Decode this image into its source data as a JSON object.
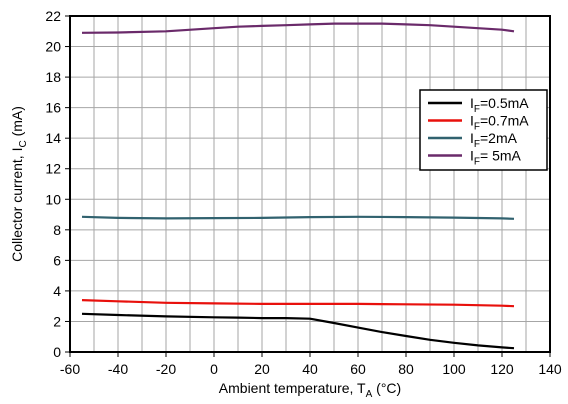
{
  "chart_data": {
    "type": "line",
    "xlabel": "Ambient temperature, T",
    "xlabel_sub": "A",
    "xlabel_unit": " (°C)",
    "ylabel": "Collector current, I",
    "ylabel_sub": "C",
    "ylabel_unit": " (mA)",
    "xlim": [
      -60,
      140
    ],
    "ylim": [
      0,
      22
    ],
    "xticks": [
      -60,
      -40,
      -20,
      0,
      20,
      40,
      60,
      80,
      100,
      120,
      140
    ],
    "yticks": [
      0,
      2,
      4,
      6,
      8,
      10,
      12,
      14,
      16,
      18,
      20,
      22
    ],
    "xminor": [
      -50,
      -30,
      -10,
      10,
      30,
      50,
      70,
      90,
      110,
      130
    ],
    "grid": true,
    "legend_position": "right",
    "series": [
      {
        "name_main": "I",
        "name_sub": "F",
        "name_rest": "=0.5mA",
        "color": "#000000",
        "x": [
          -55,
          -40,
          -20,
          0,
          10,
          20,
          30,
          40,
          50,
          60,
          70,
          80,
          90,
          100,
          110,
          120,
          125
        ],
        "y": [
          2.5,
          2.42,
          2.33,
          2.27,
          2.25,
          2.22,
          2.22,
          2.18,
          1.9,
          1.6,
          1.3,
          1.05,
          0.8,
          0.6,
          0.43,
          0.3,
          0.25
        ]
      },
      {
        "name_main": "I",
        "name_sub": "F",
        "name_rest": "=0.7mA",
        "color": "#e8100c",
        "x": [
          -55,
          -40,
          -20,
          0,
          20,
          40,
          60,
          80,
          100,
          120,
          125
        ],
        "y": [
          3.4,
          3.32,
          3.22,
          3.18,
          3.15,
          3.15,
          3.15,
          3.12,
          3.1,
          3.03,
          3.0
        ]
      },
      {
        "name_main": "I",
        "name_sub": "F",
        "name_rest": "=2mA",
        "color": "#31626f",
        "x": [
          -55,
          -40,
          -20,
          0,
          20,
          40,
          60,
          80,
          100,
          120,
          125
        ],
        "y": [
          8.85,
          8.78,
          8.75,
          8.77,
          8.78,
          8.83,
          8.85,
          8.83,
          8.8,
          8.75,
          8.72
        ]
      },
      {
        "name_main": "I",
        "name_sub": "F",
        "name_rest": "= 5mA",
        "color": "#6a2a6a",
        "x": [
          -55,
          -40,
          -20,
          0,
          10,
          20,
          30,
          40,
          50,
          60,
          70,
          80,
          90,
          100,
          110,
          120,
          125
        ],
        "y": [
          20.9,
          20.92,
          21.0,
          21.2,
          21.3,
          21.35,
          21.4,
          21.45,
          21.5,
          21.5,
          21.5,
          21.45,
          21.4,
          21.3,
          21.2,
          21.1,
          21.0
        ]
      }
    ]
  }
}
